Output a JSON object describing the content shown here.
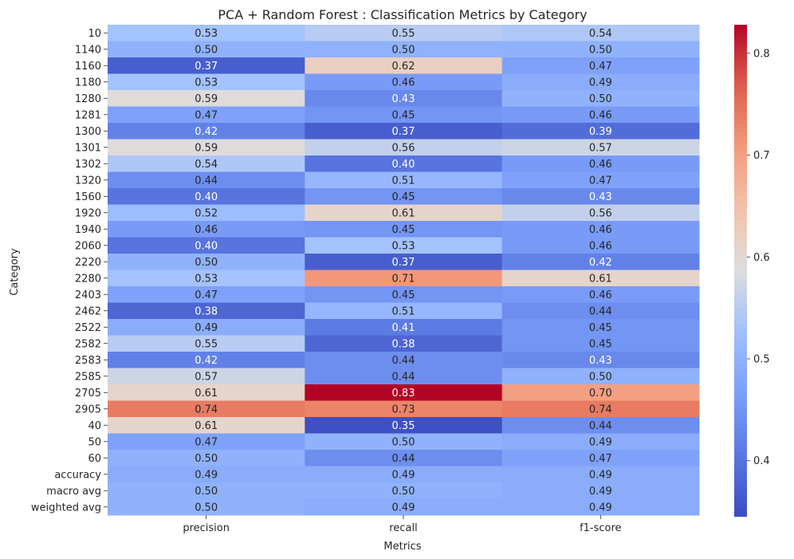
{
  "chart_data": {
    "type": "heatmap",
    "title": "PCA + Random Forest : Classification Metrics by Category",
    "xlabel": "Metrics",
    "ylabel": "Category",
    "columns": [
      "precision",
      "recall",
      "f1-score"
    ],
    "rows": [
      "10",
      "1140",
      "1160",
      "1180",
      "1280",
      "1281",
      "1300",
      "1301",
      "1302",
      "1320",
      "1560",
      "1920",
      "1940",
      "2060",
      "2220",
      "2280",
      "2403",
      "2462",
      "2522",
      "2582",
      "2583",
      "2585",
      "2705",
      "2905",
      "40",
      "50",
      "60",
      "accuracy",
      "macro avg",
      "weighted avg"
    ],
    "values": [
      [
        0.53,
        0.55,
        0.54
      ],
      [
        0.5,
        0.5,
        0.5
      ],
      [
        0.37,
        0.62,
        0.47
      ],
      [
        0.53,
        0.46,
        0.49
      ],
      [
        0.59,
        0.43,
        0.5
      ],
      [
        0.47,
        0.45,
        0.46
      ],
      [
        0.42,
        0.37,
        0.39
      ],
      [
        0.59,
        0.56,
        0.57
      ],
      [
        0.54,
        0.4,
        0.46
      ],
      [
        0.44,
        0.51,
        0.47
      ],
      [
        0.4,
        0.45,
        0.43
      ],
      [
        0.52,
        0.61,
        0.56
      ],
      [
        0.46,
        0.45,
        0.46
      ],
      [
        0.4,
        0.53,
        0.46
      ],
      [
        0.5,
        0.37,
        0.42
      ],
      [
        0.53,
        0.71,
        0.61
      ],
      [
        0.47,
        0.45,
        0.46
      ],
      [
        0.38,
        0.51,
        0.44
      ],
      [
        0.49,
        0.41,
        0.45
      ],
      [
        0.55,
        0.38,
        0.45
      ],
      [
        0.42,
        0.44,
        0.43
      ],
      [
        0.57,
        0.44,
        0.5
      ],
      [
        0.61,
        0.83,
        0.7
      ],
      [
        0.74,
        0.73,
        0.74
      ],
      [
        0.61,
        0.35,
        0.44
      ],
      [
        0.47,
        0.5,
        0.49
      ],
      [
        0.5,
        0.44,
        0.47
      ],
      [
        0.49,
        0.49,
        0.49
      ],
      [
        0.5,
        0.5,
        0.49
      ],
      [
        0.5,
        0.49,
        0.49
      ]
    ],
    "colormap": "coolwarm",
    "vmin": 0.345,
    "vmax": 0.828,
    "colorbar_ticks": [
      0.4,
      0.5,
      0.6,
      0.7,
      0.8
    ],
    "colorbar_tick_labels": [
      "0.4",
      "0.5",
      "0.6",
      "0.7",
      "0.8"
    ],
    "annotation_format": "2 decimals",
    "grid": false,
    "colorbar": "right"
  }
}
